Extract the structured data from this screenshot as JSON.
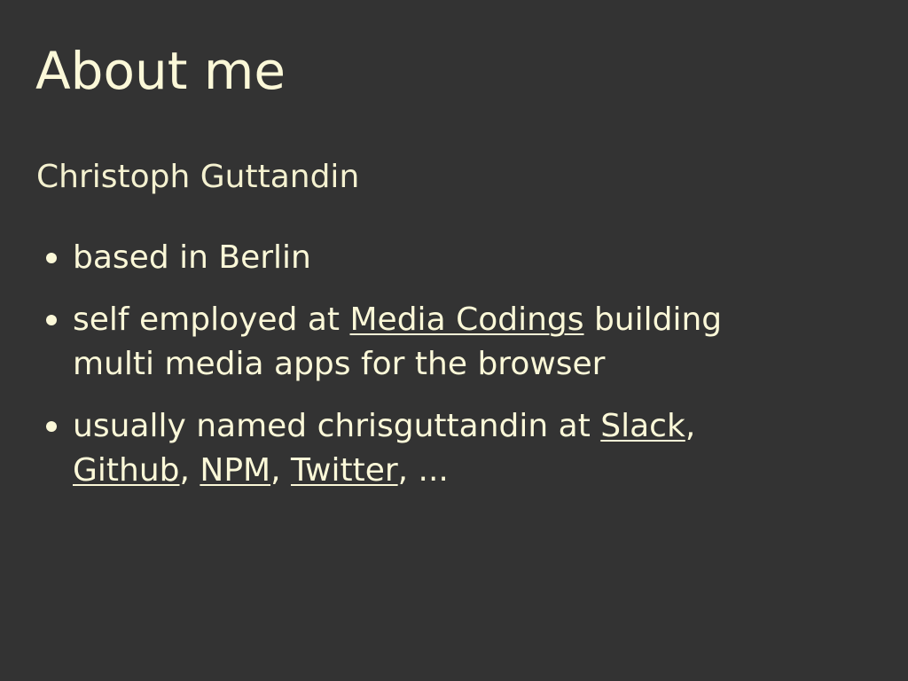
{
  "slide": {
    "title": "About me",
    "subtitle": "Christoph Guttandin",
    "bullets": {
      "b1": {
        "text": "based in Berlin"
      },
      "b2": {
        "prefix": "self employed at ",
        "link": "Media Codings",
        "suffix_line1": " building",
        "line2": "multi media apps for the browser"
      },
      "b3": {
        "prefix": "usually named chrisguttandin at ",
        "link_slack": "Slack",
        "sep1": ",",
        "link_github": "Github",
        "sep2": ", ",
        "link_npm": "NPM",
        "sep3": ", ",
        "link_twitter": "Twitter",
        "sep4": ", ..."
      }
    }
  }
}
